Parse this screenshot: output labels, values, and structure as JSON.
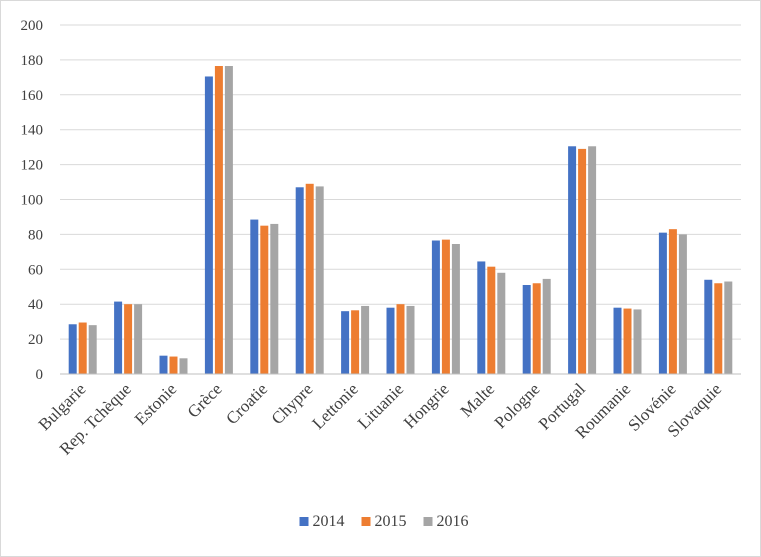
{
  "chart_data": {
    "type": "bar",
    "title": "",
    "xlabel": "",
    "ylabel": "",
    "ylim": [
      0,
      200
    ],
    "yticks": [
      0,
      20,
      40,
      60,
      80,
      100,
      120,
      140,
      160,
      180,
      200
    ],
    "grid": true,
    "legend_position": "bottom",
    "categories": [
      "Bulgarie",
      "Rep. Tchèque",
      "Estonie",
      "Grèce",
      "Croatie",
      "Chypre",
      "Lettonie",
      "Lituanie",
      "Hongrie",
      "Malte",
      "Pologne",
      "Portugal",
      "Roumanie",
      "Slovénie",
      "Slovaquie"
    ],
    "series": [
      {
        "name": "2014",
        "color": "#4472c4",
        "values": [
          28.5,
          41.5,
          10.5,
          170.5,
          88.5,
          107,
          36,
          38,
          76.5,
          64.5,
          51,
          130.5,
          38,
          81,
          54
        ]
      },
      {
        "name": "2015",
        "color": "#ed7d31",
        "values": [
          29.5,
          40,
          10,
          176.5,
          85,
          109,
          36.5,
          40,
          77,
          61.5,
          52,
          129,
          37.5,
          83,
          52
        ]
      },
      {
        "name": "2016",
        "color": "#a5a5a5",
        "values": [
          28,
          40,
          9,
          176.5,
          86,
          107.5,
          39,
          39,
          74.5,
          58,
          54.5,
          130.5,
          37,
          80,
          53
        ]
      }
    ]
  }
}
